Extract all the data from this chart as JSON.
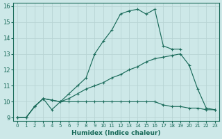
{
  "xlabel": "Humidex (Indice chaleur)",
  "bg_color": "#cde8e8",
  "grid_color": "#b8d4d4",
  "line_color": "#1a6b5a",
  "xlim": [
    -0.5,
    23.5
  ],
  "ylim": [
    8.8,
    16.2
  ],
  "yticks": [
    9,
    10,
    11,
    12,
    13,
    14,
    15,
    16
  ],
  "xticks": [
    0,
    1,
    2,
    3,
    4,
    5,
    6,
    7,
    8,
    9,
    10,
    11,
    12,
    13,
    14,
    15,
    16,
    17,
    18,
    19,
    20,
    21,
    22,
    23
  ],
  "series1_x": [
    0,
    1,
    2,
    3,
    4,
    5,
    6,
    7,
    8,
    9,
    10,
    11,
    12,
    13,
    14,
    15,
    16,
    17,
    18,
    19,
    20,
    21,
    22,
    23
  ],
  "series1_y": [
    9.0,
    9.0,
    9.7,
    10.2,
    9.5,
    10.0,
    10.0,
    10.0,
    10.0,
    10.0,
    10.0,
    10.0,
    10.0,
    10.0,
    10.0,
    10.0,
    10.0,
    9.8,
    9.7,
    9.7,
    9.6,
    9.6,
    9.5,
    9.5
  ],
  "series2_x": [
    0,
    1,
    2,
    3,
    4,
    5,
    6,
    7,
    8,
    9,
    10,
    11,
    12,
    13,
    14,
    15,
    16,
    17,
    18,
    19,
    20,
    21,
    22,
    23
  ],
  "series2_y": [
    9.0,
    9.0,
    9.7,
    10.2,
    10.1,
    10.0,
    10.2,
    10.5,
    10.8,
    11.0,
    11.2,
    11.5,
    11.7,
    12.0,
    12.2,
    12.5,
    12.7,
    12.8,
    12.9,
    13.0,
    12.3,
    10.8,
    9.6,
    9.5
  ],
  "series3_x": [
    0,
    1,
    2,
    3,
    4,
    5,
    6,
    7,
    8,
    9,
    10,
    11,
    12,
    13,
    14,
    15,
    16,
    17,
    18,
    19,
    20,
    21,
    22,
    23
  ],
  "series3_y": [
    9.0,
    9.0,
    9.7,
    10.2,
    10.1,
    10.0,
    10.5,
    11.0,
    11.5,
    13.0,
    13.8,
    14.5,
    15.5,
    15.7,
    15.8,
    15.5,
    15.8,
    13.5,
    13.3,
    13.3,
    null,
    null,
    null,
    null
  ]
}
